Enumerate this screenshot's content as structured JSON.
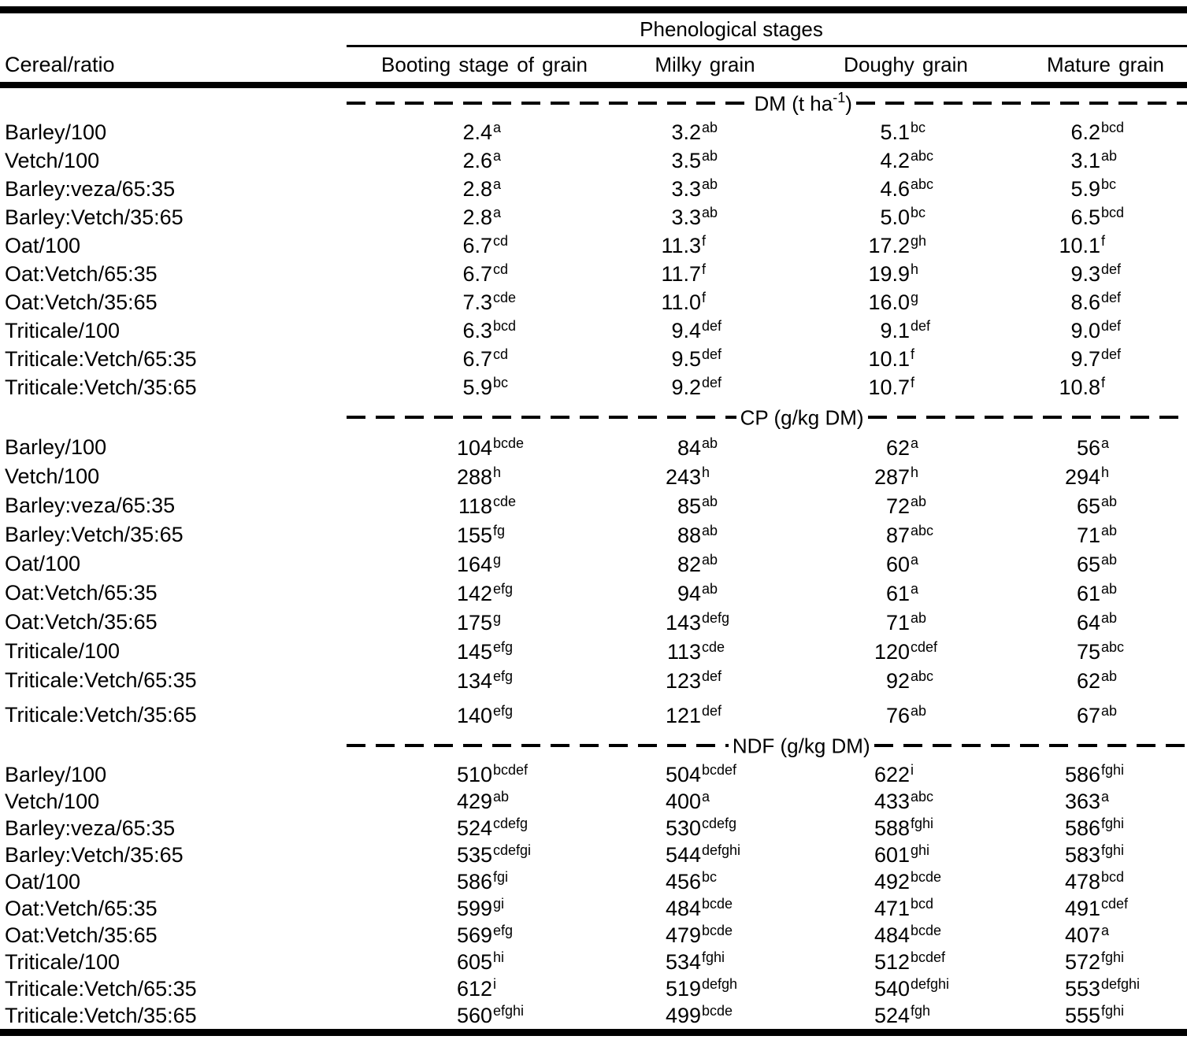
{
  "table": {
    "group_header": "Phenological stages",
    "row_header": "Cereal/ratio",
    "columns": [
      "Booting stage of grain",
      "Milky grain",
      "Doughy grain",
      "Mature grain"
    ],
    "text_color": "#000000",
    "background_color": "#ffffff",
    "sections": [
      {
        "label_prefix": "DM (t ha",
        "label_sup": "-1",
        "label_suffix": ")",
        "rows": [
          {
            "label": "Barley/100",
            "cells": [
              {
                "v": "2.4",
                "s": "a"
              },
              {
                "v": "3.2",
                "s": "ab"
              },
              {
                "v": "5.1",
                "s": "bc"
              },
              {
                "v": "6.2",
                "s": "bcd"
              }
            ]
          },
          {
            "label": "Vetch/100",
            "cells": [
              {
                "v": "2.6",
                "s": "a"
              },
              {
                "v": "3.5",
                "s": "ab"
              },
              {
                "v": "4.2",
                "s": "abc"
              },
              {
                "v": "3.1",
                "s": "ab"
              }
            ]
          },
          {
            "label": "Barley:veza/65:35",
            "cells": [
              {
                "v": "2.8",
                "s": "a"
              },
              {
                "v": "3.3",
                "s": "ab"
              },
              {
                "v": "4.6",
                "s": "abc"
              },
              {
                "v": "5.9",
                "s": "bc"
              }
            ]
          },
          {
            "label": "Barley:Vetch/35:65",
            "cells": [
              {
                "v": "2.8",
                "s": "a"
              },
              {
                "v": "3.3",
                "s": "ab"
              },
              {
                "v": "5.0",
                "s": "bc"
              },
              {
                "v": "6.5",
                "s": "bcd"
              }
            ]
          },
          {
            "label": "Oat/100",
            "cells": [
              {
                "v": "6.7",
                "s": "cd"
              },
              {
                "v": "11.3",
                "s": "f"
              },
              {
                "v": "17.2",
                "s": "gh"
              },
              {
                "v": "10.1",
                "s": "f"
              }
            ]
          },
          {
            "label": "Oat:Vetch/65:35",
            "cells": [
              {
                "v": "6.7",
                "s": "cd"
              },
              {
                "v": "11.7",
                "s": "f"
              },
              {
                "v": "19.9",
                "s": "h"
              },
              {
                "v": "9.3",
                "s": "def"
              }
            ]
          },
          {
            "label": "Oat:Vetch/35:65",
            "cells": [
              {
                "v": "7.3",
                "s": "cde"
              },
              {
                "v": "11.0",
                "s": "f"
              },
              {
                "v": "16.0",
                "s": "g"
              },
              {
                "v": "8.6",
                "s": "def"
              }
            ]
          },
          {
            "label": "Triticale/100",
            "cells": [
              {
                "v": "6.3",
                "s": "bcd"
              },
              {
                "v": "9.4",
                "s": "def"
              },
              {
                "v": "9.1",
                "s": "def"
              },
              {
                "v": "9.0",
                "s": "def"
              }
            ]
          },
          {
            "label": "Triticale:Vetch/65:35",
            "cells": [
              {
                "v": "6.7",
                "s": "cd"
              },
              {
                "v": "9.5",
                "s": "def"
              },
              {
                "v": "10.1",
                "s": "f"
              },
              {
                "v": "9.7",
                "s": "def"
              }
            ]
          },
          {
            "label": "Triticale:Vetch/35:65",
            "cells": [
              {
                "v": "5.9",
                "s": "bc"
              },
              {
                "v": "9.2",
                "s": "def"
              },
              {
                "v": "10.7",
                "s": "f"
              },
              {
                "v": "10.8",
                "s": "f"
              }
            ]
          }
        ]
      },
      {
        "label_prefix": "CP (g/kg DM)",
        "label_sup": "",
        "label_suffix": "",
        "rows": [
          {
            "label": "Barley/100",
            "cells": [
              {
                "v": "104",
                "s": "bcde"
              },
              {
                "v": "84",
                "s": "ab"
              },
              {
                "v": "62",
                "s": "a"
              },
              {
                "v": "56",
                "s": "a"
              }
            ]
          },
          {
            "label": "Vetch/100",
            "cells": [
              {
                "v": "288",
                "s": "h"
              },
              {
                "v": "243",
                "s": "h"
              },
              {
                "v": "287",
                "s": "h"
              },
              {
                "v": "294",
                "s": "h"
              }
            ]
          },
          {
            "label": "Barley:veza/65:35",
            "cells": [
              {
                "v": "118",
                "s": "cde"
              },
              {
                "v": "85",
                "s": "ab"
              },
              {
                "v": "72",
                "s": "ab"
              },
              {
                "v": "65",
                "s": "ab"
              }
            ]
          },
          {
            "label": "Barley:Vetch/35:65",
            "cells": [
              {
                "v": "155",
                "s": "fg"
              },
              {
                "v": "88",
                "s": "ab"
              },
              {
                "v": "87",
                "s": "abc"
              },
              {
                "v": "71",
                "s": "ab"
              }
            ]
          },
          {
            "label": "Oat/100",
            "cells": [
              {
                "v": "164",
                "s": "g"
              },
              {
                "v": "82",
                "s": "ab"
              },
              {
                "v": "60",
                "s": "a"
              },
              {
                "v": "65",
                "s": "ab"
              }
            ]
          },
          {
            "label": "Oat:Vetch/65:35",
            "cells": [
              {
                "v": "142",
                "s": "efg"
              },
              {
                "v": "94",
                "s": "ab"
              },
              {
                "v": "61",
                "s": "a"
              },
              {
                "v": "61",
                "s": "ab"
              }
            ]
          },
          {
            "label": "Oat:Vetch/35:65",
            "cells": [
              {
                "v": "175",
                "s": "g"
              },
              {
                "v": "143",
                "s": "defg"
              },
              {
                "v": "71",
                "s": "ab"
              },
              {
                "v": "64",
                "s": "ab"
              }
            ]
          },
          {
            "label": "Triticale/100",
            "cells": [
              {
                "v": "145",
                "s": "efg"
              },
              {
                "v": "113",
                "s": "cde"
              },
              {
                "v": "120",
                "s": "cdef"
              },
              {
                "v": "75",
                "s": "abc"
              }
            ]
          },
          {
            "label": "Triticale:Vetch/65:35",
            "cells": [
              {
                "v": "134",
                "s": "efg"
              },
              {
                "v": "123",
                "s": "def"
              },
              {
                "v": "92",
                "s": "abc"
              },
              {
                "v": "62",
                "s": "ab"
              }
            ]
          },
          {
            "label": "Triticale:Vetch/35:65",
            "cells": [
              {
                "v": "140",
                "s": "efg"
              },
              {
                "v": "121",
                "s": "def"
              },
              {
                "v": "76",
                "s": "ab"
              },
              {
                "v": "67",
                "s": "ab"
              }
            ]
          }
        ]
      },
      {
        "label_prefix": "NDF (g/kg DM)",
        "label_sup": "",
        "label_suffix": "",
        "rows": [
          {
            "label": "Barley/100",
            "cells": [
              {
                "v": "510",
                "s": "bcdef"
              },
              {
                "v": "504",
                "s": "bcdef"
              },
              {
                "v": "622",
                "s": "i"
              },
              {
                "v": "586",
                "s": "fghi"
              }
            ]
          },
          {
            "label": "Vetch/100",
            "cells": [
              {
                "v": "429",
                "s": "ab"
              },
              {
                "v": "400",
                "s": "a"
              },
              {
                "v": "433",
                "s": "abc"
              },
              {
                "v": "363",
                "s": "a"
              }
            ]
          },
          {
            "label": "Barley:veza/65:35",
            "cells": [
              {
                "v": "524",
                "s": "cdefg"
              },
              {
                "v": "530",
                "s": "cdefg"
              },
              {
                "v": "588",
                "s": "fghi"
              },
              {
                "v": "586",
                "s": "fghi"
              }
            ]
          },
          {
            "label": "Barley:Vetch/35:65",
            "cells": [
              {
                "v": "535",
                "s": "cdefgi"
              },
              {
                "v": "544",
                "s": "defghi"
              },
              {
                "v": "601",
                "s": "ghi"
              },
              {
                "v": "583",
                "s": "fghi"
              }
            ]
          },
          {
            "label": "Oat/100",
            "cells": [
              {
                "v": "586",
                "s": "fgi"
              },
              {
                "v": "456",
                "s": "bc"
              },
              {
                "v": "492",
                "s": "bcde"
              },
              {
                "v": "478",
                "s": "bcd"
              }
            ]
          },
          {
            "label": "Oat:Vetch/65:35",
            "cells": [
              {
                "v": "599",
                "s": "gi"
              },
              {
                "v": "484",
                "s": "bcde"
              },
              {
                "v": "471",
                "s": "bcd"
              },
              {
                "v": "491",
                "s": "cdef"
              }
            ]
          },
          {
            "label": "Oat:Vetch/35:65",
            "cells": [
              {
                "v": "569",
                "s": "efg"
              },
              {
                "v": "479",
                "s": "bcde"
              },
              {
                "v": "484",
                "s": "bcde"
              },
              {
                "v": "407",
                "s": "a"
              }
            ]
          },
          {
            "label": "Triticale/100",
            "cells": [
              {
                "v": "605",
                "s": "hi"
              },
              {
                "v": "534",
                "s": "fghi"
              },
              {
                "v": "512",
                "s": "bcdef"
              },
              {
                "v": "572",
                "s": "fghi"
              }
            ]
          },
          {
            "label": "Triticale:Vetch/65:35",
            "cells": [
              {
                "v": "612",
                "s": "i"
              },
              {
                "v": "519",
                "s": "defgh"
              },
              {
                "v": "540",
                "s": "defghi"
              },
              {
                "v": "553",
                "s": "defghi"
              }
            ]
          },
          {
            "label": "Triticale:Vetch/35:65",
            "cells": [
              {
                "v": "560",
                "s": "efghi"
              },
              {
                "v": "499",
                "s": "bcde"
              },
              {
                "v": "524",
                "s": "fgh"
              },
              {
                "v": "555",
                "s": "fghi"
              }
            ]
          }
        ]
      }
    ]
  }
}
